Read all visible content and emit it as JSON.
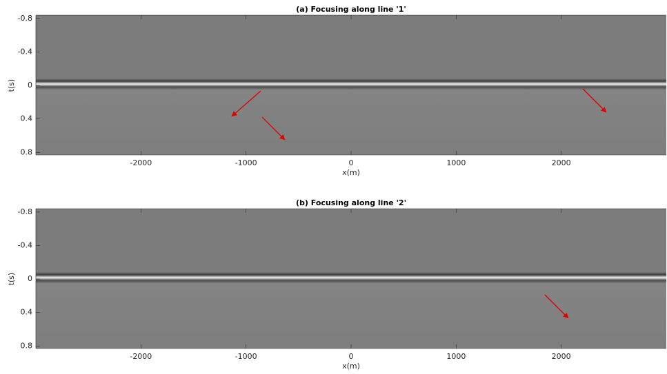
{
  "chart_data": [
    {
      "type": "image",
      "title": "(a) Focusing along line '1'",
      "x_label": "x(m)",
      "y_label": "t(s)",
      "xlim": [
        -3000,
        3000
      ],
      "ylim": [
        -0.84,
        0.83
      ],
      "y_reversed": true,
      "colormap": "gray",
      "xticks": [
        -2000,
        -1000,
        0,
        1000,
        2000
      ],
      "yticks": [
        -0.8,
        -0.4,
        0,
        0.4,
        0.8
      ]
    },
    {
      "type": "image",
      "title": "(b) Focusing along line '2'",
      "x_label": "x(m)",
      "y_label": "t(s)",
      "xlim": [
        -3000,
        3000
      ],
      "ylim": [
        -0.84,
        0.83
      ],
      "y_reversed": true,
      "colormap": "gray",
      "xticks": [
        -2000,
        -1000,
        0,
        1000,
        2000
      ],
      "yticks": [
        -0.8,
        -0.4,
        0,
        0.4,
        0.8
      ]
    }
  ]
}
